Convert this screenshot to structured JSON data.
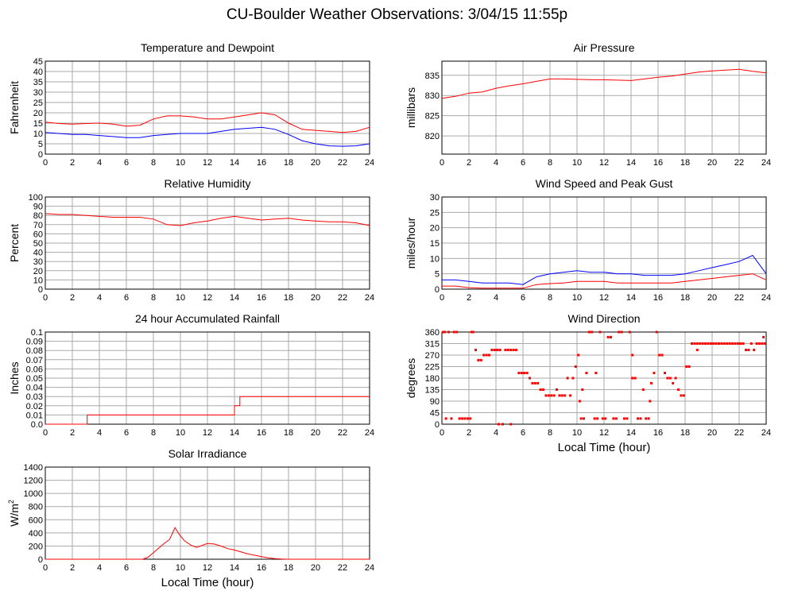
{
  "page_title": "CU-Boulder Weather Observations: 3/04/15 11:55p",
  "colors": {
    "red": "#ff0000",
    "blue": "#0000ff",
    "grid": "#aaaaaa"
  },
  "chart_data": [
    {
      "id": "temperature",
      "type": "line",
      "title": "Temperature and Dewpoint",
      "ylabel": "Fahrenheit",
      "xlabel": "",
      "xlim": [
        0,
        24
      ],
      "xticks": [
        "0",
        "2",
        "4",
        "6",
        "8",
        "10",
        "12",
        "14",
        "16",
        "18",
        "20",
        "22",
        "24"
      ],
      "ylim": [
        0,
        45
      ],
      "yticks": [
        "0",
        "5",
        "10",
        "15",
        "20",
        "25",
        "30",
        "35",
        "40",
        "45"
      ],
      "grid": true,
      "series": [
        {
          "color": "#ff0000",
          "x": [
            0,
            1,
            2,
            3,
            4,
            5,
            6,
            7,
            8,
            9,
            10,
            11,
            12,
            13,
            14,
            15,
            16,
            17,
            18,
            19,
            20,
            21,
            22,
            23,
            24
          ],
          "y": [
            15.5,
            14.8,
            14.5,
            14.8,
            15,
            14.5,
            13.5,
            14,
            17,
            18.5,
            18.5,
            18,
            17,
            17,
            18,
            19,
            20,
            19,
            15,
            12,
            11.5,
            11,
            10.5,
            11,
            13
          ]
        },
        {
          "color": "#0000ff",
          "x": [
            0,
            1,
            2,
            3,
            4,
            5,
            6,
            7,
            8,
            9,
            10,
            11,
            12,
            13,
            14,
            15,
            16,
            17,
            18,
            19,
            20,
            21,
            22,
            23,
            24
          ],
          "y": [
            10.5,
            10,
            9.5,
            9.5,
            9,
            8.5,
            8,
            8,
            9,
            9.5,
            10,
            10,
            10,
            11,
            12,
            12.5,
            13,
            12,
            9.5,
            6.5,
            5,
            4,
            3.8,
            4,
            5
          ]
        }
      ]
    },
    {
      "id": "pressure",
      "type": "line",
      "title": "Air Pressure",
      "ylabel": "millibars",
      "xlabel": "",
      "xlim": [
        0,
        24
      ],
      "xticks": [
        "0",
        "2",
        "4",
        "6",
        "8",
        "10",
        "12",
        "14",
        "16",
        "18",
        "20",
        "22",
        "24"
      ],
      "ylim": [
        815.5,
        838.5
      ],
      "yticks": [
        "820",
        "825",
        "830",
        "835"
      ],
      "ytick_values": [
        820,
        825,
        830,
        835
      ],
      "grid": true,
      "series": [
        {
          "color": "#ff0000",
          "x": [
            0,
            1,
            2,
            3,
            4,
            5,
            6,
            7,
            8,
            9,
            10,
            11,
            12,
            13,
            14,
            15,
            16,
            17,
            18,
            19,
            20,
            21,
            22,
            23,
            24
          ],
          "y": [
            829.3,
            829.8,
            830.6,
            830.9,
            831.8,
            832.4,
            832.9,
            833.5,
            834.1,
            834.1,
            834,
            833.9,
            833.9,
            833.8,
            833.7,
            834.1,
            834.5,
            834.8,
            835.3,
            835.8,
            836.1,
            836.3,
            836.5,
            836,
            835.6
          ]
        }
      ]
    },
    {
      "id": "humidity",
      "type": "line",
      "title": "Relative Humidity",
      "ylabel": "Percent",
      "xlabel": "",
      "xlim": [
        0,
        24
      ],
      "xticks": [
        "0",
        "2",
        "4",
        "6",
        "8",
        "10",
        "12",
        "14",
        "16",
        "18",
        "20",
        "22",
        "24"
      ],
      "ylim": [
        0,
        100
      ],
      "yticks": [
        "0",
        "10",
        "20",
        "30",
        "40",
        "50",
        "60",
        "70",
        "80",
        "90",
        "100"
      ],
      "grid": true,
      "series": [
        {
          "color": "#ff0000",
          "x": [
            0,
            1,
            2,
            3,
            4,
            5,
            6,
            7,
            8,
            9,
            10,
            11,
            12,
            13,
            14,
            15,
            16,
            17,
            18,
            19,
            20,
            21,
            22,
            23,
            24
          ],
          "y": [
            82,
            81,
            81,
            80,
            79,
            78,
            78,
            78,
            76,
            70,
            69,
            72,
            74,
            77,
            79,
            77,
            75,
            76,
            77,
            75,
            74,
            73,
            73,
            72,
            69
          ]
        }
      ]
    },
    {
      "id": "wind",
      "type": "line",
      "title": "Wind Speed and Peak Gust",
      "ylabel": "miles/hour",
      "xlabel": "",
      "xlim": [
        0,
        24
      ],
      "xticks": [
        "0",
        "2",
        "4",
        "6",
        "8",
        "10",
        "12",
        "14",
        "16",
        "18",
        "20",
        "22",
        "24"
      ],
      "ylim": [
        0,
        30
      ],
      "yticks": [
        "0",
        "5",
        "10",
        "15",
        "20",
        "25",
        "30"
      ],
      "grid": true,
      "series": [
        {
          "color": "#0000ff",
          "x": [
            0,
            1,
            2,
            3,
            4,
            5,
            6,
            7,
            8,
            9,
            10,
            11,
            12,
            13,
            14,
            15,
            16,
            17,
            18,
            19,
            20,
            21,
            22,
            23,
            24
          ],
          "y": [
            3,
            3,
            2.5,
            2,
            2,
            2,
            1.5,
            4,
            5,
            5.5,
            6,
            5.5,
            5.5,
            5,
            5,
            4.5,
            4.5,
            4.5,
            5,
            6,
            7,
            8,
            9,
            11,
            5
          ]
        },
        {
          "color": "#ff0000",
          "x": [
            0,
            1,
            2,
            3,
            4,
            5,
            6,
            7,
            8,
            9,
            10,
            11,
            12,
            13,
            14,
            15,
            16,
            17,
            18,
            19,
            20,
            21,
            22,
            23,
            24
          ],
          "y": [
            1,
            1,
            0.5,
            0.3,
            0.3,
            0.3,
            0.3,
            1.5,
            1.8,
            2,
            2.5,
            2.5,
            2.5,
            2,
            2,
            2,
            2,
            2,
            2.5,
            3,
            3.5,
            4,
            4.5,
            5,
            3
          ]
        }
      ]
    },
    {
      "id": "rainfall",
      "type": "line",
      "title": "24 hour Accumulated Rainfall",
      "ylabel": "Inches",
      "xlabel": "",
      "xlim": [
        0,
        24
      ],
      "xticks": [
        "0",
        "2",
        "4",
        "6",
        "8",
        "10",
        "12",
        "14",
        "16",
        "18",
        "20",
        "22",
        "24"
      ],
      "ylim": [
        0,
        0.1
      ],
      "yticks": [
        "0.0",
        "0.01",
        "0.02",
        "0.03",
        "0.04",
        "0.05",
        "0.06",
        "0.07",
        "0.08",
        "0.09",
        "0.1"
      ],
      "grid": true,
      "series": [
        {
          "color": "#ff0000",
          "x": [
            0,
            3.1,
            3.1,
            14.0,
            14.0,
            14.4,
            14.4,
            24
          ],
          "y": [
            0,
            0,
            0.01,
            0.01,
            0.02,
            0.02,
            0.03,
            0.03
          ]
        }
      ]
    },
    {
      "id": "direction",
      "type": "scatter",
      "title": "Wind Direction",
      "ylabel": "degrees",
      "xlabel": "Local Time (hour)",
      "xlim": [
        0,
        24
      ],
      "xticks": [
        "0",
        "2",
        "4",
        "6",
        "8",
        "10",
        "12",
        "14",
        "16",
        "18",
        "20",
        "22",
        "24"
      ],
      "ylim": [
        0,
        360
      ],
      "yticks": [
        "0",
        "45",
        "90",
        "135",
        "180",
        "225",
        "270",
        "315",
        "360"
      ],
      "grid": true,
      "series": [
        {
          "color": "#ff0000",
          "x": [
            0.1,
            0.3,
            0.5,
            0.7,
            0.9,
            1.1,
            1.3,
            1.5,
            1.7,
            1.9,
            2.1,
            2.3,
            2.5,
            2.7,
            2.9,
            3.1,
            3.3,
            3.5,
            3.7,
            3.9,
            4.1,
            4.3,
            4.5,
            4.7,
            4.9,
            5.1,
            5.3,
            5.5,
            5.7,
            5.9,
            6.1,
            6.3,
            6.5,
            6.7,
            6.9,
            7.1,
            7.3,
            7.5,
            7.7,
            7.9,
            8.1,
            8.3,
            8.5,
            8.7,
            8.9,
            9.1,
            9.3,
            9.5,
            9.7,
            9.9,
            10.1,
            10.3,
            10.5,
            10.7,
            10.9,
            11.1,
            11.3,
            11.5,
            11.7,
            11.9,
            12.1,
            12.3,
            12.5,
            12.7,
            12.9,
            13.1,
            13.3,
            13.5,
            13.7,
            13.9,
            14.1,
            14.3,
            14.5,
            14.7,
            14.9,
            15.1,
            15.3,
            15.5,
            15.7,
            15.9,
            16.1,
            16.3,
            16.5,
            16.7,
            16.9,
            17.1,
            17.3,
            17.5,
            17.7,
            17.9,
            18.1,
            18.3,
            18.5,
            18.7,
            18.9,
            19.1,
            19.3,
            19.5,
            19.7,
            19.9,
            20.1,
            20.3,
            20.5,
            20.7,
            20.9,
            21.1,
            21.3,
            21.5,
            21.7,
            21.9,
            22.1,
            22.3,
            22.5,
            22.7,
            22.9,
            23.1,
            23.3,
            23.5,
            23.7,
            23.9,
            0.2,
            2.2,
            4.2,
            5.1,
            10.2,
            10.4,
            11.4,
            12.5,
            14.1,
            15.4,
            18.9,
            23.8
          ],
          "y": [
            360,
            22,
            360,
            22,
            360,
            360,
            22,
            22,
            22,
            22,
            22,
            360,
            290,
            250,
            250,
            270,
            270,
            270,
            290,
            290,
            290,
            290,
            0,
            290,
            290,
            290,
            290,
            290,
            200,
            200,
            200,
            200,
            180,
            160,
            160,
            160,
            135,
            135,
            112,
            112,
            112,
            112,
            135,
            112,
            112,
            112,
            180,
            112,
            180,
            225,
            270,
            22,
            22,
            200,
            360,
            360,
            22,
            22,
            360,
            22,
            22,
            340,
            340,
            22,
            22,
            360,
            360,
            22,
            22,
            360,
            270,
            180,
            22,
            22,
            135,
            22,
            22,
            160,
            200,
            360,
            270,
            270,
            200,
            180,
            180,
            160,
            180,
            135,
            112,
            112,
            225,
            225,
            315,
            315,
            315,
            315,
            315,
            315,
            315,
            315,
            315,
            315,
            315,
            315,
            315,
            315,
            315,
            315,
            315,
            315,
            315,
            315,
            290,
            290,
            315,
            290,
            315,
            315,
            315,
            315,
            360,
            360,
            0,
            0,
            90,
            135,
            200,
            340,
            180,
            90,
            290,
            340
          ]
        }
      ]
    },
    {
      "id": "solar",
      "type": "line",
      "title": "Solar Irradiance",
      "ylabel": "W/m",
      "ylabel_sup": "2",
      "xlabel": "Local Time (hour)",
      "xlim": [
        0,
        24
      ],
      "xticks": [
        "0",
        "2",
        "4",
        "6",
        "8",
        "10",
        "12",
        "14",
        "16",
        "18",
        "20",
        "22",
        "24"
      ],
      "ylim": [
        0,
        1400
      ],
      "yticks": [
        "0",
        "200",
        "400",
        "600",
        "800",
        "1000",
        "1200",
        "1400"
      ],
      "grid": true,
      "series": [
        {
          "color": "#ff0000",
          "x": [
            0,
            6,
            7.2,
            7.6,
            8,
            8.4,
            8.8,
            9.2,
            9.6,
            9.9,
            10.3,
            10.8,
            11.2,
            11.6,
            12,
            12.5,
            13,
            13.5,
            14,
            14.5,
            15,
            15.5,
            16,
            16.5,
            17,
            17.5,
            18,
            24
          ],
          "y": [
            0,
            0,
            0,
            30,
            100,
            170,
            240,
            300,
            480,
            380,
            280,
            210,
            180,
            210,
            240,
            230,
            200,
            160,
            140,
            110,
            80,
            60,
            40,
            20,
            8,
            3,
            0,
            0
          ]
        }
      ]
    }
  ]
}
